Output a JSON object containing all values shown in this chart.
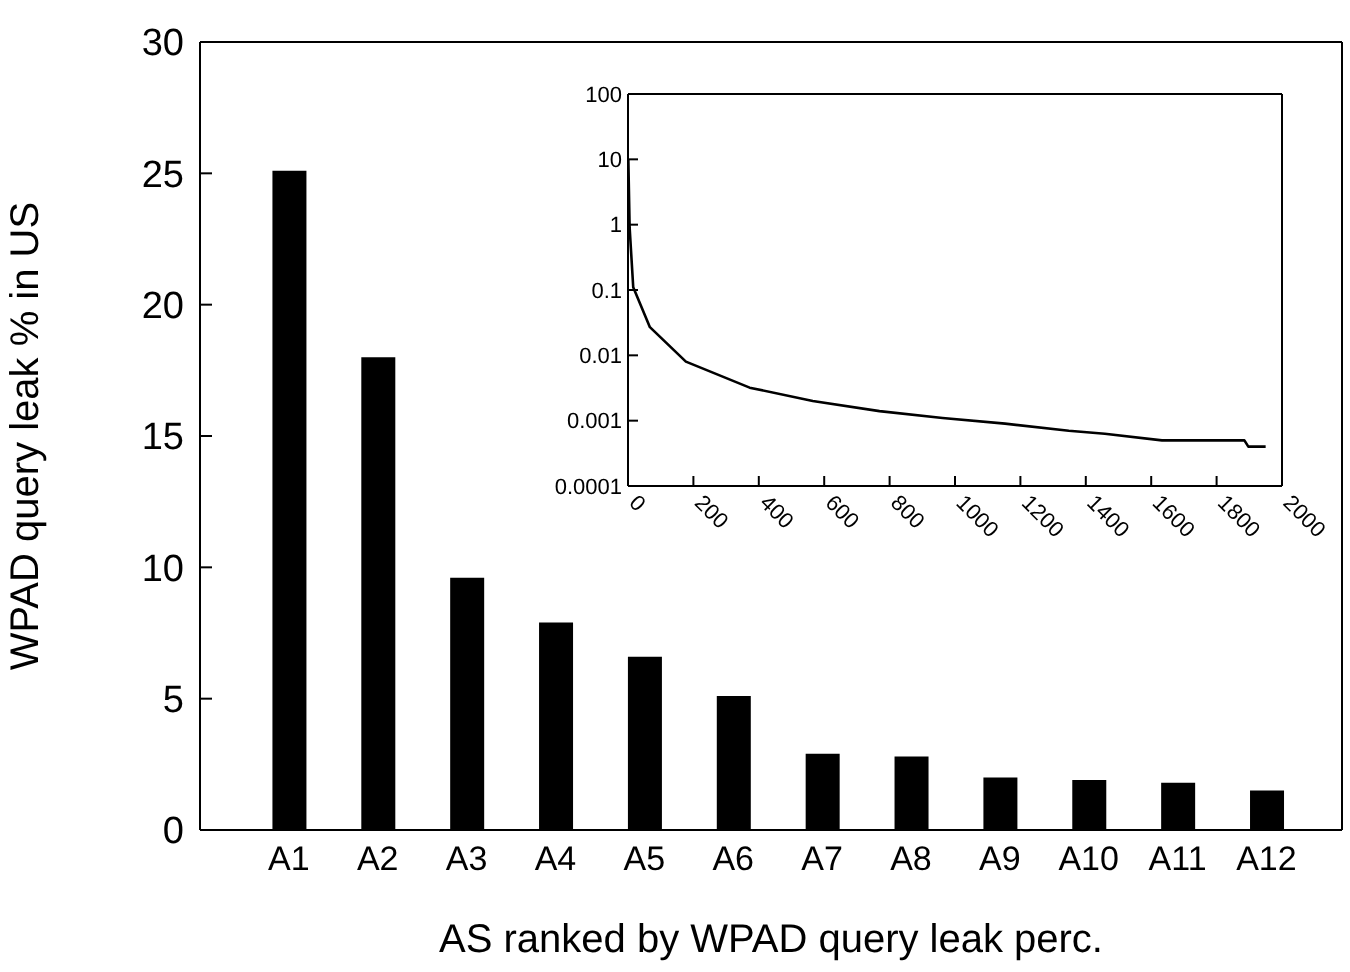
{
  "chart_data": [
    {
      "type": "bar",
      "xlabel": "AS ranked by WPAD query leak perc.",
      "ylabel": "WPAD query leak % in US",
      "categories": [
        "A1",
        "A2",
        "A3",
        "A4",
        "A5",
        "A6",
        "A7",
        "A8",
        "A9",
        "A10",
        "A11",
        "A12"
      ],
      "values": [
        25.1,
        18,
        9.6,
        7.9,
        6.6,
        5.1,
        2.9,
        2.8,
        2.0,
        1.9,
        1.8,
        1.5
      ],
      "color": "#000000",
      "ylim": [
        0,
        30
      ],
      "yticks": [
        0,
        5,
        10,
        15,
        20,
        25,
        30
      ],
      "grid": false,
      "legend": false
    },
    {
      "type": "line",
      "log": "y",
      "marker": "none",
      "line_style": "solid",
      "grid": false,
      "legend": false,
      "series": [
        {
          "color": "#000000",
          "x": [
            1,
            5,
            16,
            67,
            177,
            372,
            565,
            769,
            962,
            1153,
            1348,
            1458,
            1633,
            1885,
            1897,
            1950
          ],
          "values": [
            10,
            0.9,
            0.11,
            0.027,
            0.008,
            0.0032,
            0.002,
            0.0014,
            0.0011,
            0.0009,
            0.0007,
            0.00063,
            0.0005,
            0.0005,
            0.0004,
            0.0004
          ]
        }
      ],
      "xlim": [
        0,
        2000
      ],
      "xticks": [
        0,
        200,
        400,
        600,
        800,
        1000,
        1200,
        1400,
        1600,
        1800,
        2000
      ],
      "ylim": [
        0.0001,
        100
      ],
      "yticks": [
        {
          "value": 0.0001,
          "label": "0.0001"
        },
        {
          "value": 0.001,
          "label": "0.001"
        },
        {
          "value": 0.01,
          "label": "0.01"
        },
        {
          "value": 0.1,
          "label": "0.1"
        },
        1,
        10,
        100
      ]
    }
  ]
}
